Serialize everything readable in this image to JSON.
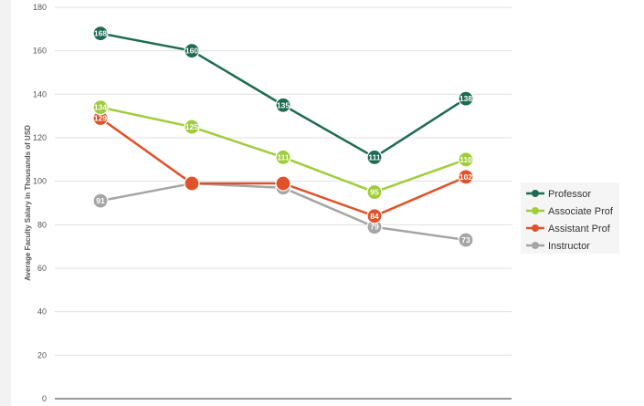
{
  "chart_data": {
    "type": "line",
    "title": "",
    "xlabel": "",
    "ylabel": "Average Faculty Salary in Thousands of USD",
    "ylim": [
      0,
      180
    ],
    "yticks": [
      0,
      20,
      40,
      60,
      80,
      100,
      120,
      140,
      160,
      180
    ],
    "x": [
      1,
      2,
      3,
      4,
      5
    ],
    "grid": true,
    "legend_position": "right",
    "series": [
      {
        "name": "Professor",
        "color": "#1d6b53",
        "values": [
          168,
          160,
          135,
          111,
          138
        ],
        "labels": [
          "168",
          "160",
          "135",
          "111",
          "138"
        ]
      },
      {
        "name": "Associate Prof",
        "color": "#9fcd3a",
        "values": [
          134,
          125,
          111,
          95,
          110
        ],
        "labels": [
          "134",
          "125",
          "111",
          "95",
          "110"
        ]
      },
      {
        "name": "Assistant Prof",
        "color": "#e0522a",
        "values": [
          129,
          99,
          99,
          84,
          102
        ],
        "labels": [
          "129",
          "",
          "",
          "84",
          "102"
        ]
      },
      {
        "name": "Instructor",
        "color": "#a5a5a5",
        "values": [
          91,
          99,
          97,
          79,
          73
        ],
        "labels": [
          "91",
          "99",
          "",
          "79",
          "73"
        ]
      }
    ]
  }
}
